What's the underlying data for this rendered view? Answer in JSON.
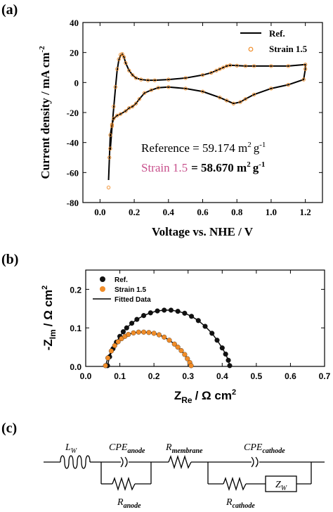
{
  "chart_data": [
    {
      "panel": "(a)",
      "type": "line",
      "xlabel": "Voltage vs. NHE / V",
      "ylabel": "Current density / mA cm",
      "ylabel_sup": "-2",
      "xlim": [
        -0.1,
        1.3
      ],
      "ylim": [
        -80,
        40
      ],
      "xticks": [
        "0.0",
        "0.2",
        "0.4",
        "0.6",
        "0.8",
        "1.0",
        "1.2"
      ],
      "yticks": [
        "40",
        "20",
        "0",
        "-20",
        "-40",
        "-60",
        "-80"
      ],
      "xtick_values": [
        0.0,
        0.2,
        0.4,
        0.6,
        0.8,
        1.0,
        1.2
      ],
      "ytick_values": [
        40,
        20,
        0,
        -20,
        -40,
        -60,
        -80
      ],
      "legend": [
        "Ref.",
        "Strain 1.5"
      ],
      "series": [
        {
          "name": "Ref.",
          "style": "line",
          "color": "#000000",
          "x": [
            0.06,
            0.07,
            0.08,
            0.09,
            0.1,
            0.11,
            0.12,
            0.13,
            0.14,
            0.15,
            0.17,
            0.19,
            0.21,
            0.24,
            0.28,
            0.32,
            0.4,
            0.5,
            0.6,
            0.65,
            0.68,
            0.7,
            0.72,
            0.74,
            0.76,
            0.8,
            0.85,
            0.9,
            1.0,
            1.1,
            1.2,
            1.2,
            1.19,
            1.1,
            1.0,
            0.9,
            0.85,
            0.82,
            0.78,
            0.74,
            0.7,
            0.6,
            0.5,
            0.4,
            0.34,
            0.3,
            0.26,
            0.23,
            0.21,
            0.19,
            0.17,
            0.15,
            0.12,
            0.1,
            0.08,
            0.07,
            0.06,
            0.055,
            0.05
          ],
          "y": [
            -45,
            -30,
            -17,
            -4,
            8,
            15,
            18,
            19,
            17,
            13,
            8,
            5,
            3,
            2,
            1.5,
            1.5,
            2,
            3,
            5,
            6.5,
            8,
            9,
            10,
            11,
            11.5,
            11.3,
            11,
            11,
            11,
            11,
            12,
            9,
            2,
            -1.5,
            -4,
            -8,
            -11,
            -13,
            -14,
            -12,
            -10,
            -6,
            -4,
            -3,
            -3.5,
            -5,
            -7,
            -11,
            -14,
            -16,
            -17,
            -19,
            -21,
            -22,
            -24,
            -28,
            -35,
            -50,
            -65
          ]
        },
        {
          "name": "Strain 1.5",
          "style": "markers",
          "color": "#f08c28",
          "x": [
            0.06,
            0.07,
            0.08,
            0.09,
            0.1,
            0.11,
            0.12,
            0.13,
            0.14,
            0.15,
            0.17,
            0.19,
            0.21,
            0.24,
            0.28,
            0.32,
            0.4,
            0.5,
            0.6,
            0.65,
            0.68,
            0.7,
            0.72,
            0.74,
            0.76,
            0.8,
            0.85,
            0.9,
            1.0,
            1.1,
            1.2,
            1.2,
            1.19,
            1.1,
            1.0,
            0.9,
            0.85,
            0.82,
            0.78,
            0.74,
            0.7,
            0.6,
            0.5,
            0.4,
            0.34,
            0.3,
            0.26,
            0.23,
            0.21,
            0.19,
            0.17,
            0.15,
            0.12,
            0.1,
            0.08,
            0.07,
            0.06,
            0.055,
            0.05
          ],
          "y": [
            -44,
            -29,
            -16,
            -3,
            9,
            15.5,
            18.5,
            19,
            17,
            13,
            8,
            5,
            3,
            2,
            1.5,
            1.5,
            2,
            3,
            5,
            6.5,
            8,
            9,
            10,
            11,
            11.5,
            11.3,
            11,
            11,
            11,
            11,
            12,
            9,
            2,
            -1.5,
            -4,
            -8,
            -11,
            -13,
            -14,
            -12,
            -10,
            -6,
            -4,
            -3,
            -3.5,
            -5,
            -7,
            -11,
            -14,
            -16,
            -17,
            -19,
            -21,
            -22,
            -24,
            -28,
            -35,
            -50,
            -70
          ]
        }
      ],
      "annotation_ref_label": "Reference = 59.174 m",
      "annotation_ref_unit": "g",
      "annotation_strain_label": "Strain 1.5",
      "annotation_strain_value": "= 58.670 m",
      "annotation_strain_unit": "g",
      "annotation_sup_2": "2",
      "annotation_sup_m1": "-1"
    },
    {
      "panel": "(b)",
      "type": "scatter",
      "xlabel_main": "Z",
      "xlabel_sub": "Re",
      "xlabel_unit": "/ Ω cm",
      "xlabel_sup": "2",
      "ylabel_main": "-Z",
      "ylabel_sub": "Im",
      "ylabel_unit": "/ Ω cm",
      "ylabel_sup": "2",
      "xlim": [
        0.0,
        0.7
      ],
      "ylim": [
        0.0,
        0.25
      ],
      "xticks": [
        "0.0",
        "0.1",
        "0.2",
        "0.3",
        "0.4",
        "0.5",
        "0.6",
        "0.7"
      ],
      "yticks": [
        "0.0",
        "0.1",
        "0.2"
      ],
      "xtick_values": [
        0.0,
        0.1,
        0.2,
        0.3,
        0.4,
        0.5,
        0.6,
        0.7
      ],
      "ytick_values": [
        0.0,
        0.1,
        0.2
      ],
      "legend": [
        "Ref.",
        "Strain 1.5",
        "Fitted Data"
      ],
      "series": [
        {
          "name": "Ref.",
          "color": "#111111",
          "x": [
            0.064,
            0.07,
            0.08,
            0.09,
            0.1,
            0.11,
            0.12,
            0.135,
            0.15,
            0.17,
            0.19,
            0.21,
            0.23,
            0.25,
            0.27,
            0.29,
            0.31,
            0.33,
            0.35,
            0.37,
            0.385,
            0.4,
            0.41,
            0.418,
            0.422
          ],
          "y": [
            0.002,
            0.025,
            0.046,
            0.063,
            0.078,
            0.09,
            0.1,
            0.112,
            0.122,
            0.132,
            0.139,
            0.144,
            0.146,
            0.146,
            0.143,
            0.138,
            0.13,
            0.119,
            0.104,
            0.086,
            0.068,
            0.048,
            0.032,
            0.016,
            0.002
          ]
        },
        {
          "name": "Strain 1.5",
          "color": "#f08c28",
          "x": [
            0.058,
            0.065,
            0.075,
            0.085,
            0.095,
            0.105,
            0.115,
            0.125,
            0.14,
            0.155,
            0.17,
            0.185,
            0.2,
            0.215,
            0.23,
            0.245,
            0.26,
            0.27,
            0.28,
            0.29,
            0.298,
            0.305,
            0.309
          ],
          "y": [
            0.002,
            0.022,
            0.04,
            0.054,
            0.064,
            0.072,
            0.078,
            0.083,
            0.087,
            0.089,
            0.089,
            0.088,
            0.086,
            0.082,
            0.076,
            0.068,
            0.058,
            0.05,
            0.041,
            0.031,
            0.02,
            0.01,
            0.002
          ]
        }
      ]
    }
  ],
  "panel_c": {
    "label": "(c)",
    "components": {
      "lw_main": "L",
      "lw_sub": "W",
      "cpe_anode_main": "CPE",
      "cpe_anode_sub": "anode",
      "r_anode_main": "R",
      "r_anode_sub": "anode",
      "r_membrane_main": "R",
      "r_membrane_sub": "membrane",
      "cpe_cathode_main": "CPE",
      "cpe_cathode_sub": "cathode",
      "r_cathode_main": "R",
      "r_cathode_sub": "cathode",
      "zw_main": "Z",
      "zw_sub": "W"
    }
  }
}
